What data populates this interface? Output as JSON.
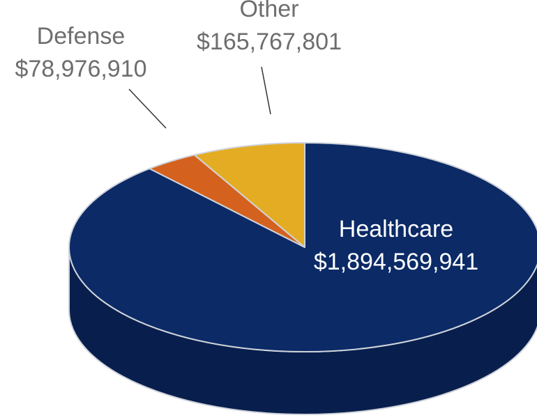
{
  "chart_data": {
    "type": "pie",
    "style": "3d",
    "slices": [
      {
        "label": "Healthcare",
        "value": 1894569941,
        "value_label": "$1,894,569,941",
        "color": "#0b2a66",
        "side_color": "#081f4d",
        "label_color": "#ffffff",
        "label_placement": "inside"
      },
      {
        "label": "Defense",
        "value": 78976910,
        "value_label": "$78,976,910",
        "color": "#d4621e",
        "side_color": "#a94a13",
        "label_color": "#6e6e6e",
        "label_placement": "outside"
      },
      {
        "label": "Other",
        "value": 165767801,
        "value_label": "$165,767,801",
        "color": "#e4ac22",
        "side_color": "#b88414",
        "label_color": "#6e6e6e",
        "label_placement": "outside"
      }
    ],
    "outline_color": "#cfd3da",
    "leader_line_color": "#333333"
  }
}
